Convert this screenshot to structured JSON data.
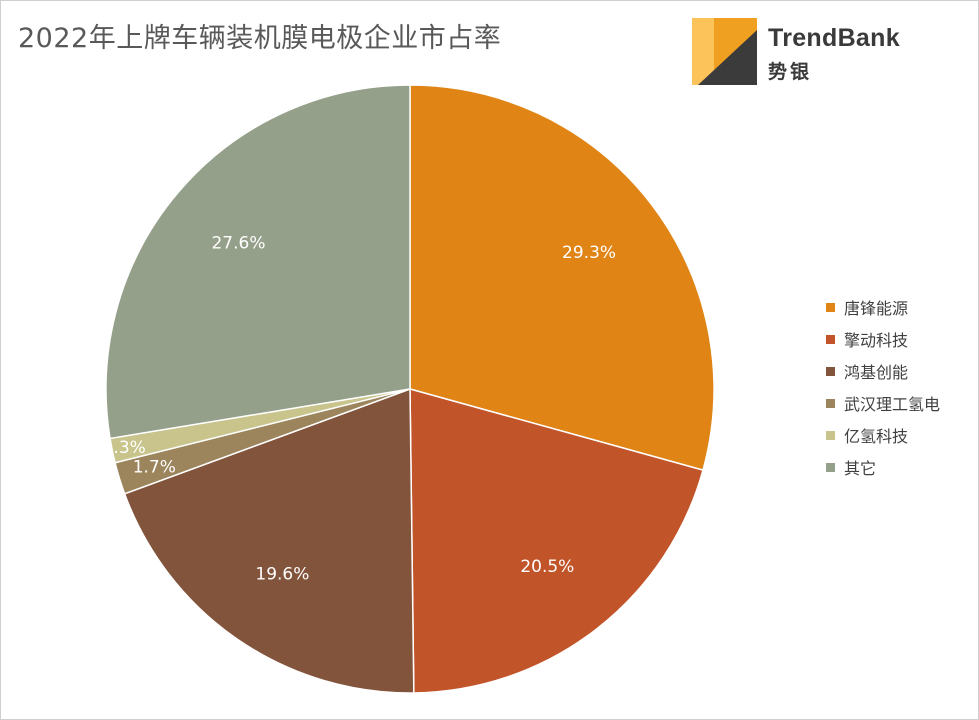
{
  "title": "2022年上牌车辆装机膜电极企业市占率",
  "logo": {
    "name": "TrendBank",
    "sub": "势银",
    "colors": [
      "#fbc35a",
      "#f0a020",
      "#3b3b3b"
    ]
  },
  "chart_data": {
    "type": "pie",
    "title": "2022年上牌车辆装机膜电极企业市占率",
    "categories": [
      "唐锋能源",
      "擎动科技",
      "鸿基创能",
      "武汉理工氢电",
      "亿氢科技",
      "其它"
    ],
    "values": [
      29.3,
      20.5,
      19.6,
      1.7,
      1.3,
      27.6
    ],
    "data_labels": [
      "29.3%",
      "20.5%",
      "19.6%",
      "1.7%",
      "1.3%",
      "27.6%"
    ],
    "colors": [
      "#e08416",
      "#c2542a",
      "#82543b",
      "#9c845c",
      "#c8c48c",
      "#95a08a"
    ],
    "start": "12 o'clock",
    "direction": "clockwise",
    "legend_position": "right"
  }
}
